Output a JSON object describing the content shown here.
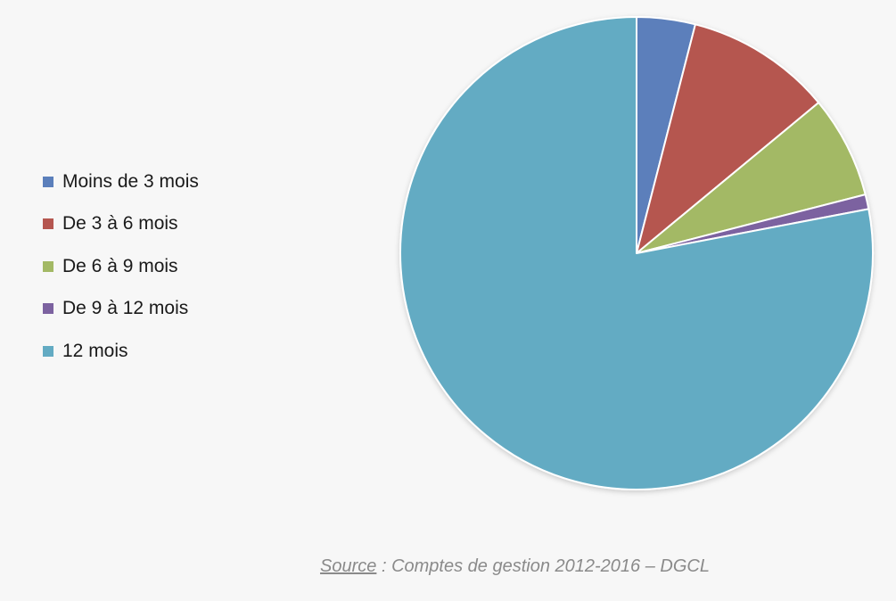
{
  "chart_data": {
    "type": "pie",
    "categories": [
      "Moins de 3 mois",
      "De 3 à 6 mois",
      "De 6 à 9 mois",
      "De 9 à 12 mois",
      "12 mois"
    ],
    "values": [
      4,
      10,
      7,
      1,
      78
    ],
    "colors": [
      "#5b7fbb",
      "#b55650",
      "#a3b965",
      "#7c62a0",
      "#63abc3"
    ],
    "legend_position": "left",
    "start_angle": "12 o'clock, clockwise"
  },
  "source": {
    "label": "Source",
    "text": " : Comptes de gestion 2012-2016 – DGCL"
  }
}
